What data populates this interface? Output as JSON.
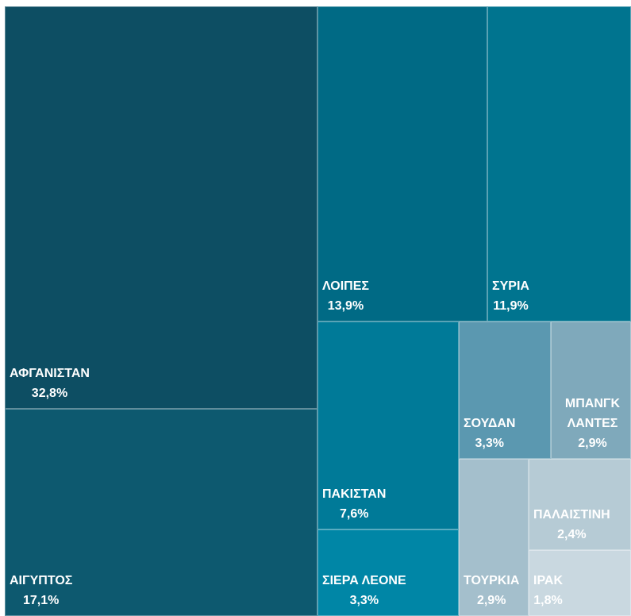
{
  "chart_data": {
    "type": "treemap",
    "categories": [
      "ΑΦΓΑΝΙΣΤΑΝ",
      "ΑΙΓΥΠΤΟΣ",
      "ΛΟΙΠΕΣ",
      "ΣΥΡΙΑ",
      "ΠΑΚΙΣΤΑΝ",
      "ΣΙΕΡΑ ΛΕΟΝΕ",
      "ΣΟΥΔΑΝ",
      "ΜΠΑΝΓΚ ΛΑΝΤΕΣ",
      "ΤΟΥΡΚΙΑ",
      "ΠΑΛΑΙΣΤΙΝΗ",
      "ΙΡΑΚ"
    ],
    "values": [
      32.8,
      17.1,
      13.9,
      11.9,
      7.6,
      3.3,
      3.3,
      2.9,
      2.9,
      2.4,
      1.8
    ],
    "value_labels": [
      "32,8%",
      "17,1%",
      "13,9%",
      "11,9%",
      "7,6%",
      "3,3%",
      "3,3%",
      "2,9%",
      "2,9%",
      "2,4%",
      "1,8%"
    ],
    "colors": [
      "#0d4e63",
      "#0d596f",
      "#006a85",
      "#00748f",
      "#007a98",
      "#0086a6",
      "#5b98b0",
      "#7fa9bb",
      "#a4bfcc",
      "#b6cbd5",
      "#c9d8e0"
    ]
  }
}
